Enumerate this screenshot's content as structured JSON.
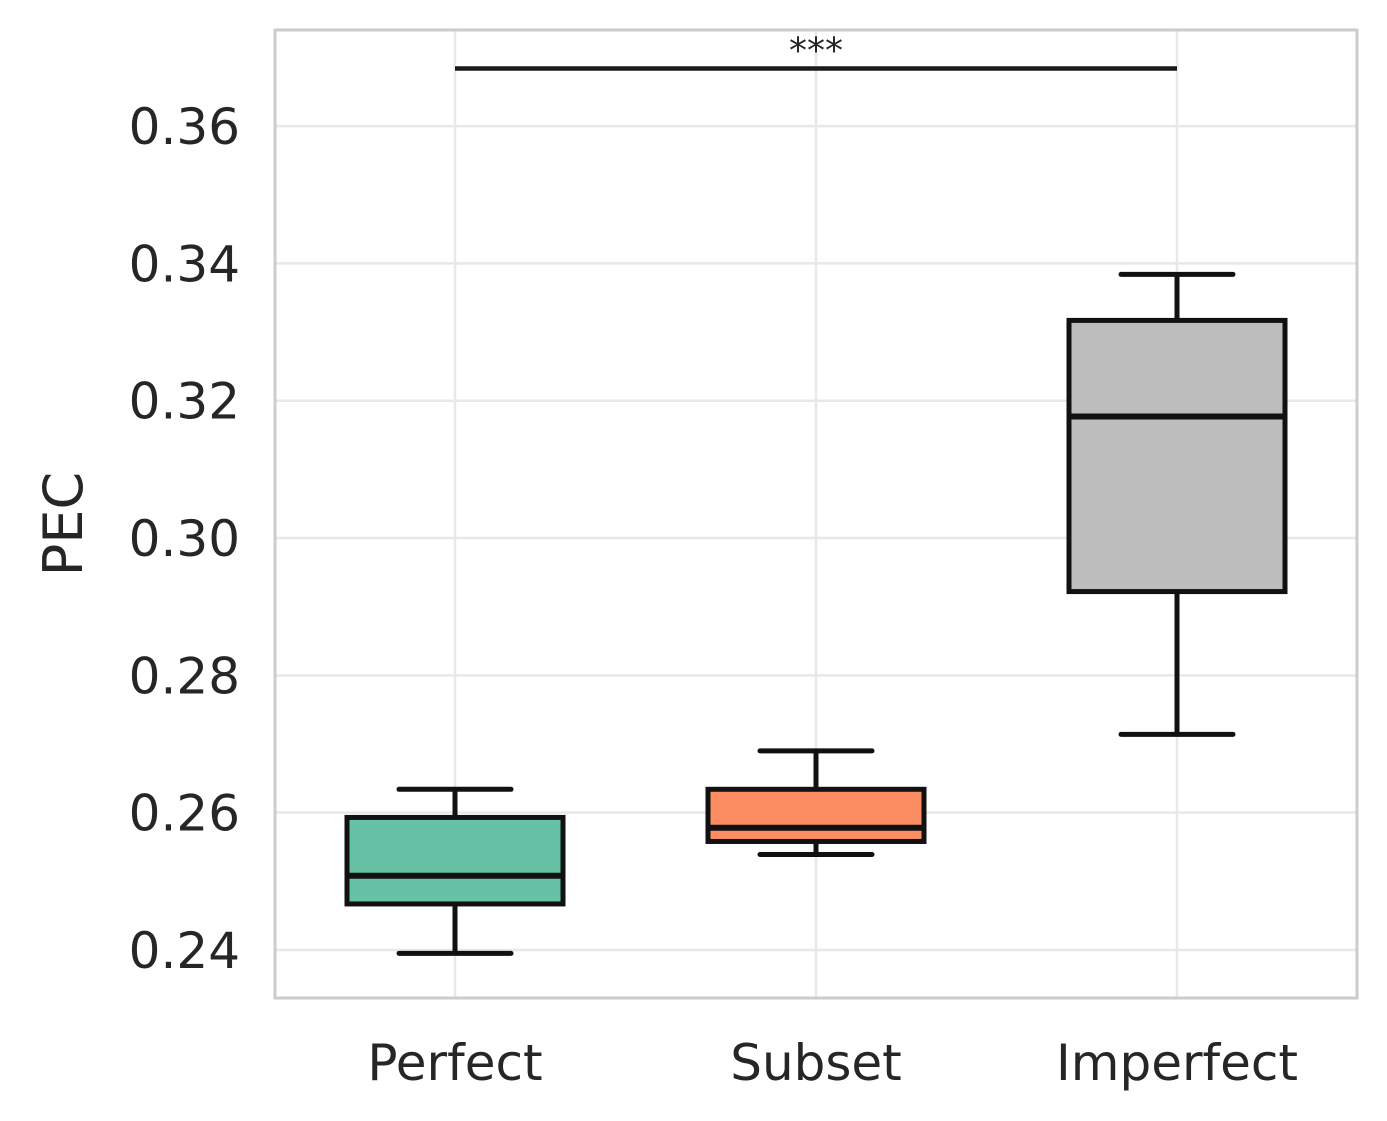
{
  "chart_data": {
    "type": "box",
    "title": "",
    "xlabel": "",
    "ylabel": "PEC",
    "categories": [
      "Perfect",
      "Subset",
      "Imperfect"
    ],
    "ylim": [
      0.233,
      0.374
    ],
    "yticks": [
      "0.24",
      "0.26",
      "0.28",
      "0.30",
      "0.32",
      "0.34",
      "0.36"
    ],
    "ytick_values": [
      0.24,
      0.26,
      0.28,
      0.3,
      0.32,
      0.34,
      0.36
    ],
    "grid": true,
    "boxes": [
      {
        "category": "Perfect",
        "whisker_low": 0.2395,
        "q1": 0.2467,
        "median": 0.2508,
        "q3": 0.2593,
        "whisker_high": 0.2634,
        "color": "#66c2a5"
      },
      {
        "category": "Subset",
        "whisker_low": 0.2539,
        "q1": 0.2558,
        "median": 0.2578,
        "q3": 0.2634,
        "whisker_high": 0.269,
        "color": "#fc8d62"
      },
      {
        "category": "Imperfect",
        "whisker_low": 0.2714,
        "q1": 0.2922,
        "median": 0.3177,
        "q3": 0.3317,
        "whisker_high": 0.3384,
        "color": "#bdbdbd"
      }
    ],
    "annotations": [
      {
        "text": "***",
        "from": "Perfect",
        "to": "Imperfect",
        "y": 0.3684
      }
    ]
  }
}
